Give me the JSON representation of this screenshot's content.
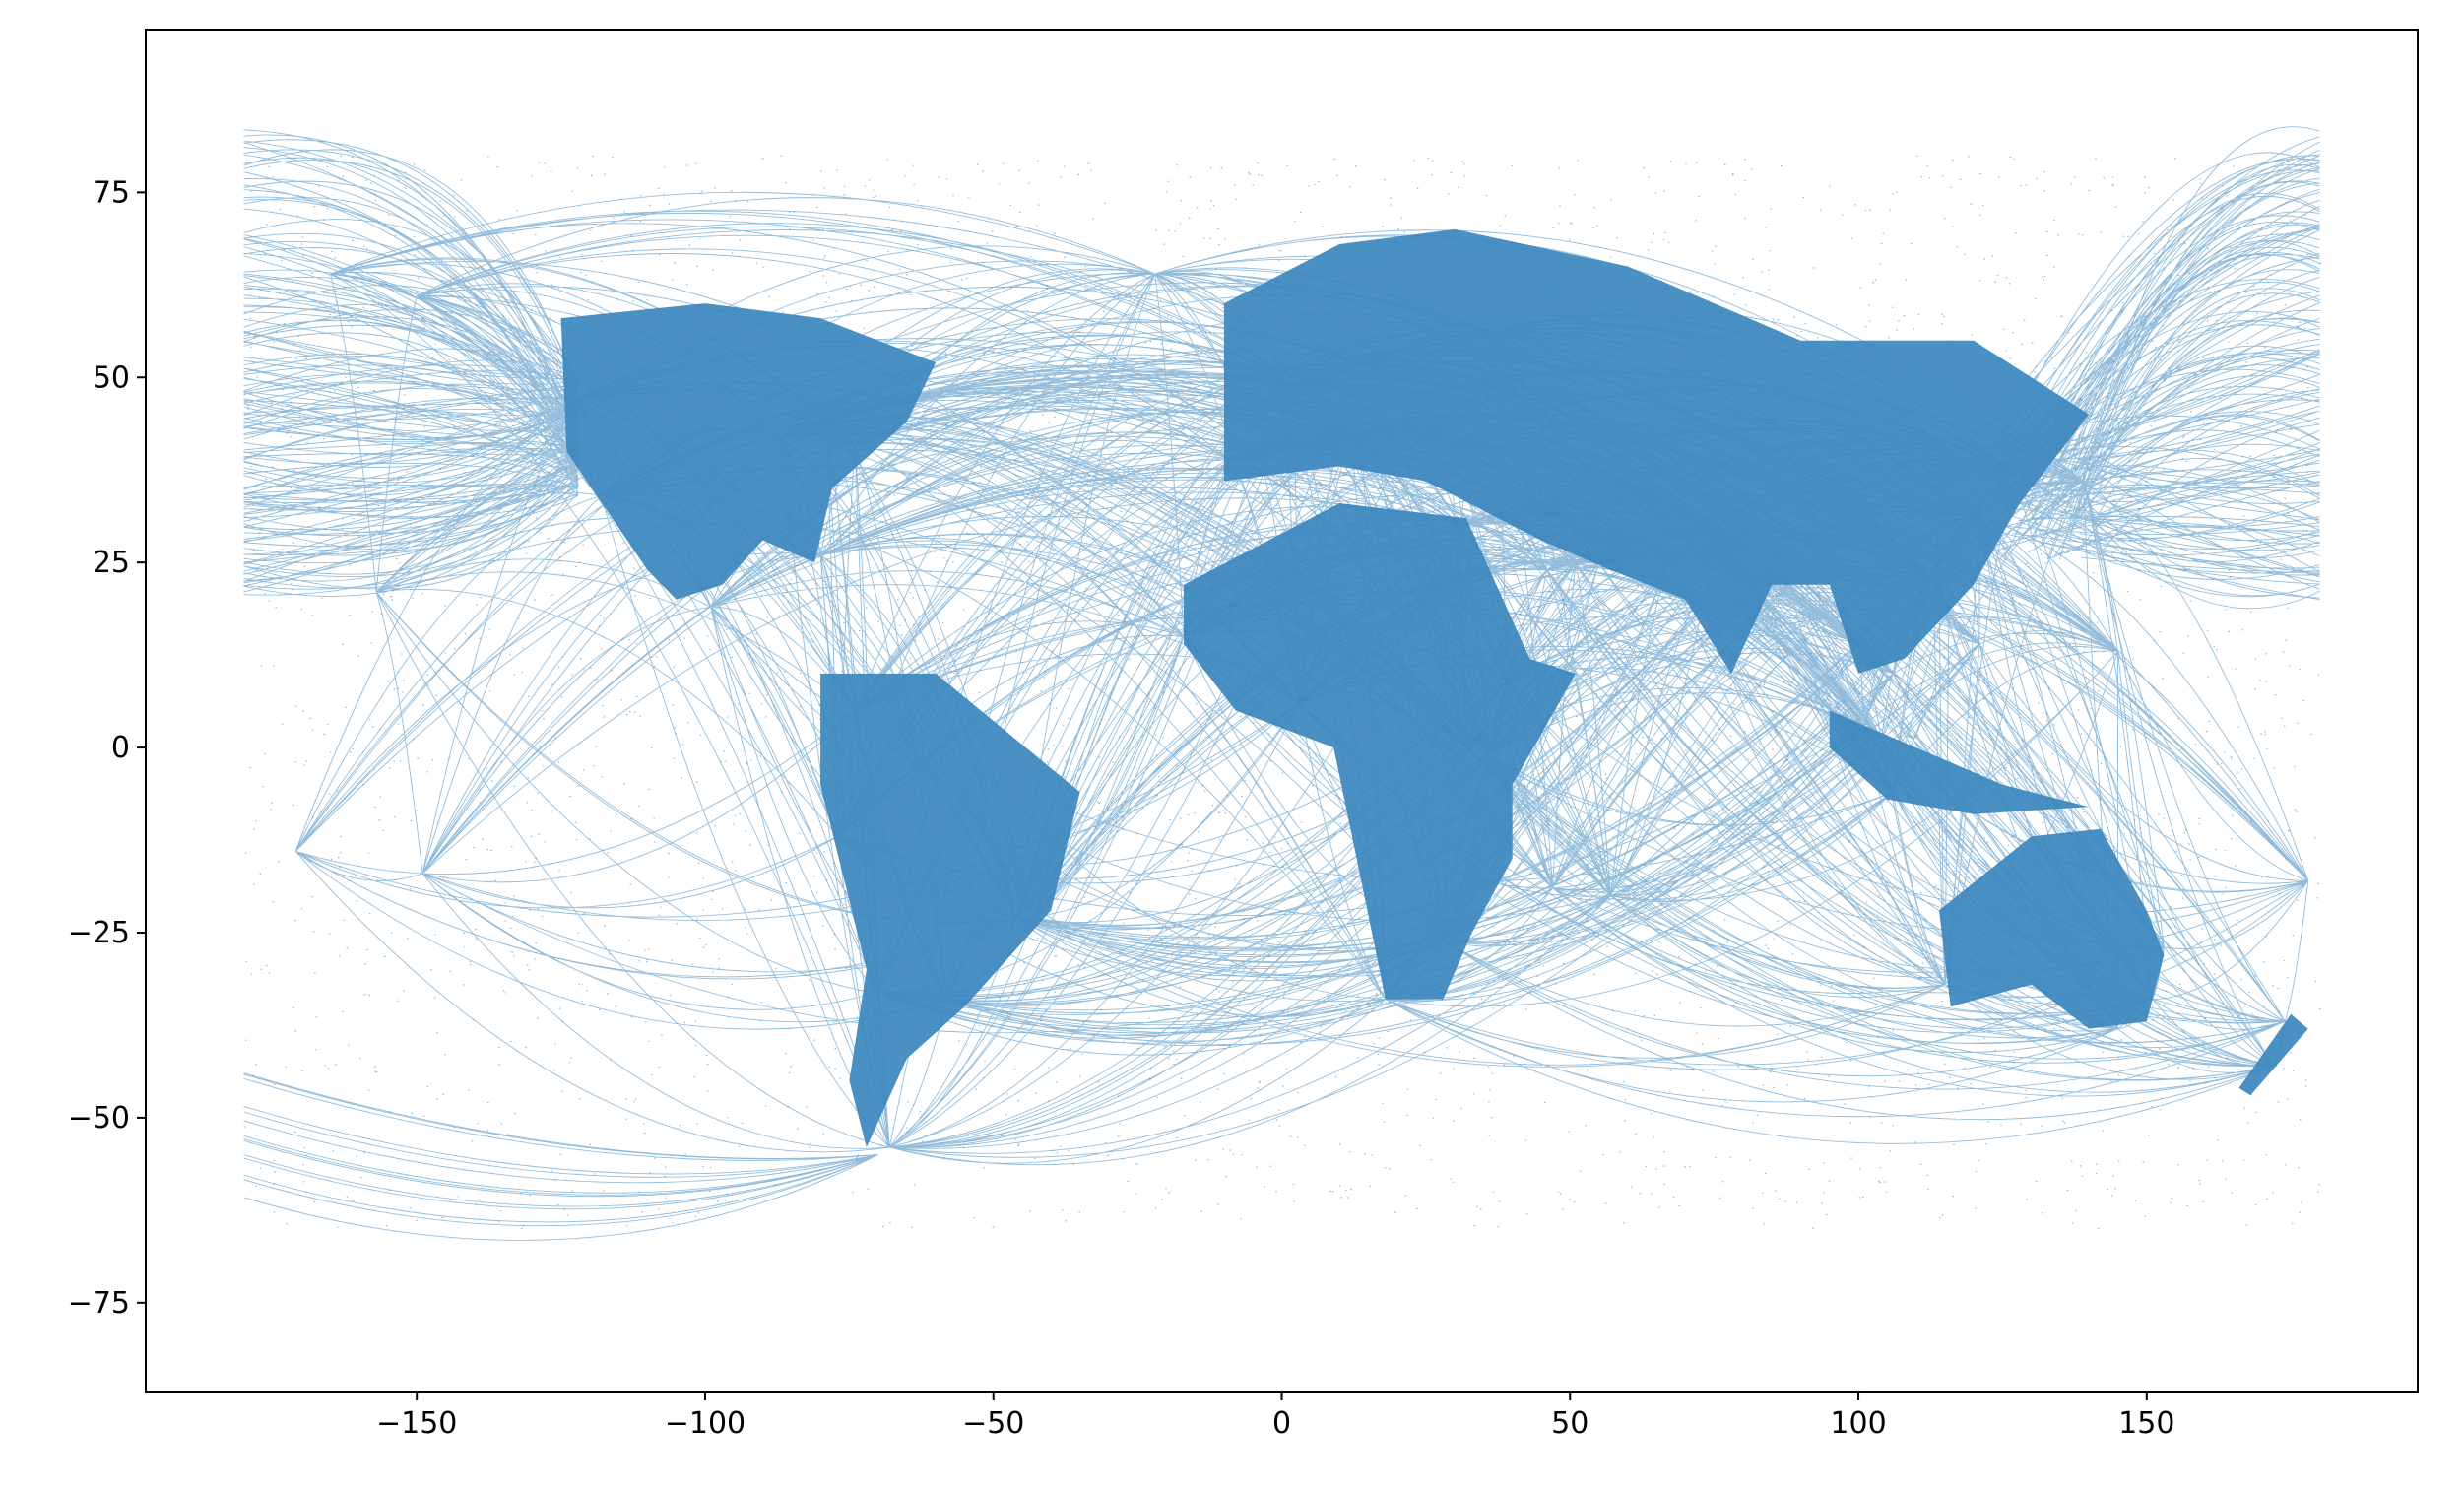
{
  "chart_data": {
    "type": "scatter",
    "title": "",
    "xlabel": "",
    "ylabel": "",
    "xlim": [
      -197,
      197
    ],
    "ylim": [
      -87,
      97
    ],
    "grid": false,
    "legend": "none",
    "marker_color": "#3c87be",
    "x_ticks": [
      -150,
      -100,
      -50,
      0,
      50,
      100,
      150
    ],
    "x_tick_labels": [
      "−150",
      "−100",
      "−50",
      "0",
      "50",
      "100",
      "150"
    ],
    "y_ticks": [
      75,
      50,
      25,
      0,
      -25,
      -50,
      -75
    ],
    "y_tick_labels": [
      "75",
      "50",
      "25",
      "0",
      "−25",
      "−50",
      "−75"
    ],
    "series": [
      {
        "description": "",
        "x_range": [
          -180,
          180
        ],
        "y_range": [
          -78,
          88
        ],
        "dense_regions": [
          {
            "lon_range": [
              -125,
              -60
            ],
            "lat_range": [
              15,
              55
            ]
          },
          {
            "lon_range": [
              -12,
              145
            ],
            "lat_range": [
              20,
              70
            ]
          },
          {
            "lon_range": [
              -82,
              -35
            ],
            "lat_range": [
              -55,
              12
            ]
          },
          {
            "lon_range": [
              -18,
              52
            ],
            "lat_range": [
              -35,
              35
            ]
          },
          {
            "lon_range": [
              113,
              154
            ],
            "lat_range": [
              -44,
              -10
            ]
          },
          {
            "lon_range": [
              166,
              178
            ],
            "lat_range": [
              -47,
              -34
            ]
          }
        ]
      }
    ]
  }
}
